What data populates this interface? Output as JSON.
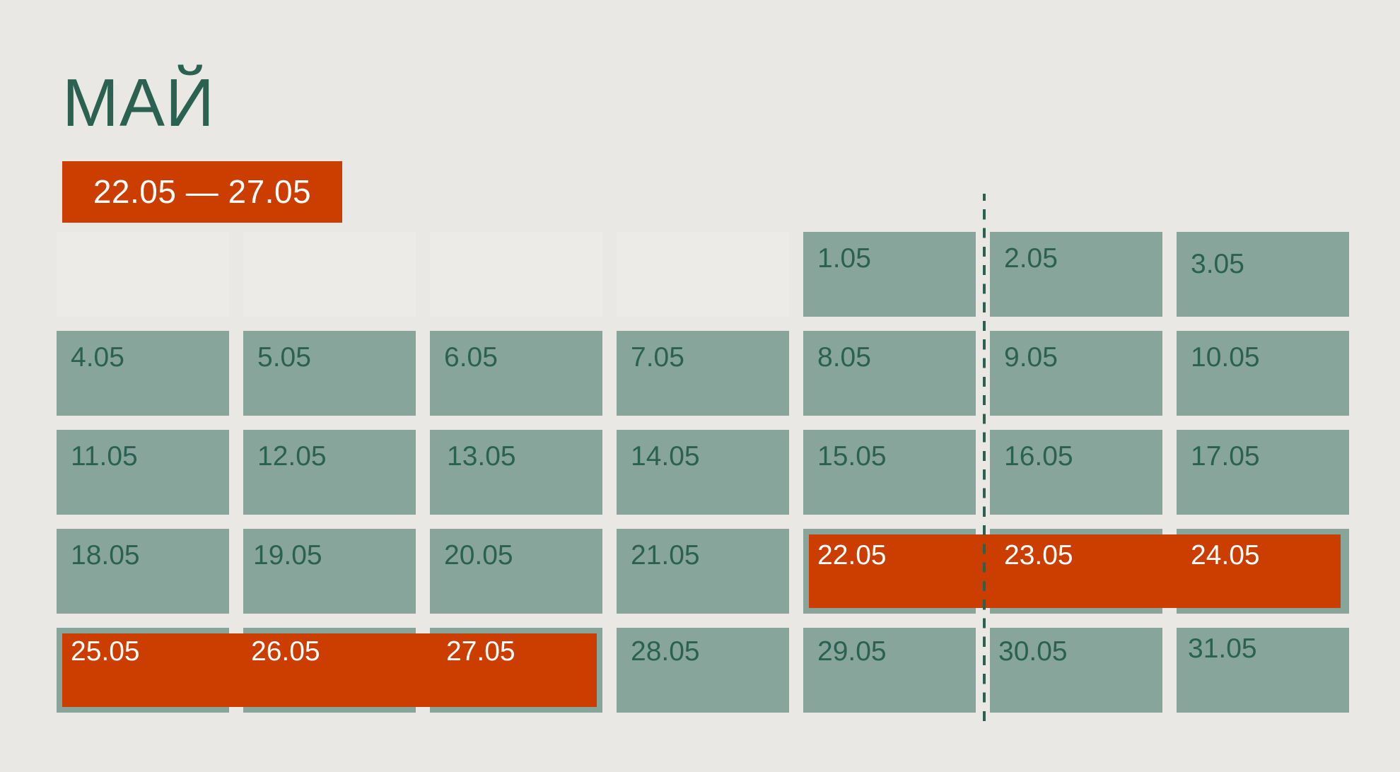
{
  "month_title": "МАЙ",
  "range_label": "22.05 — 27.05",
  "highlight": {
    "color": "#CC3D00",
    "range_start": "22.05",
    "range_end": "27.05"
  },
  "colors": {
    "background": "#EAE8E4",
    "cell": "#88A59B",
    "text": "#2B6150",
    "highlight": "#CC3D00"
  },
  "weeks": [
    [
      "",
      "",
      "",
      "",
      "1.05",
      "2.05",
      "3.05"
    ],
    [
      "4.05",
      "5.05",
      "6.05",
      "7.05",
      "8.05",
      "9.05",
      "10.05"
    ],
    [
      "11.05",
      "12.05",
      "13.05",
      "14.05",
      "15.05",
      "16.05",
      "17.05"
    ],
    [
      "18.05",
      "19.05",
      "20.05",
      "21.05",
      "22.05",
      "23.05",
      "24.05"
    ],
    [
      "25.05",
      "26.05",
      "27.05",
      "28.05",
      "29.05",
      "30.05",
      "31.05"
    ]
  ]
}
